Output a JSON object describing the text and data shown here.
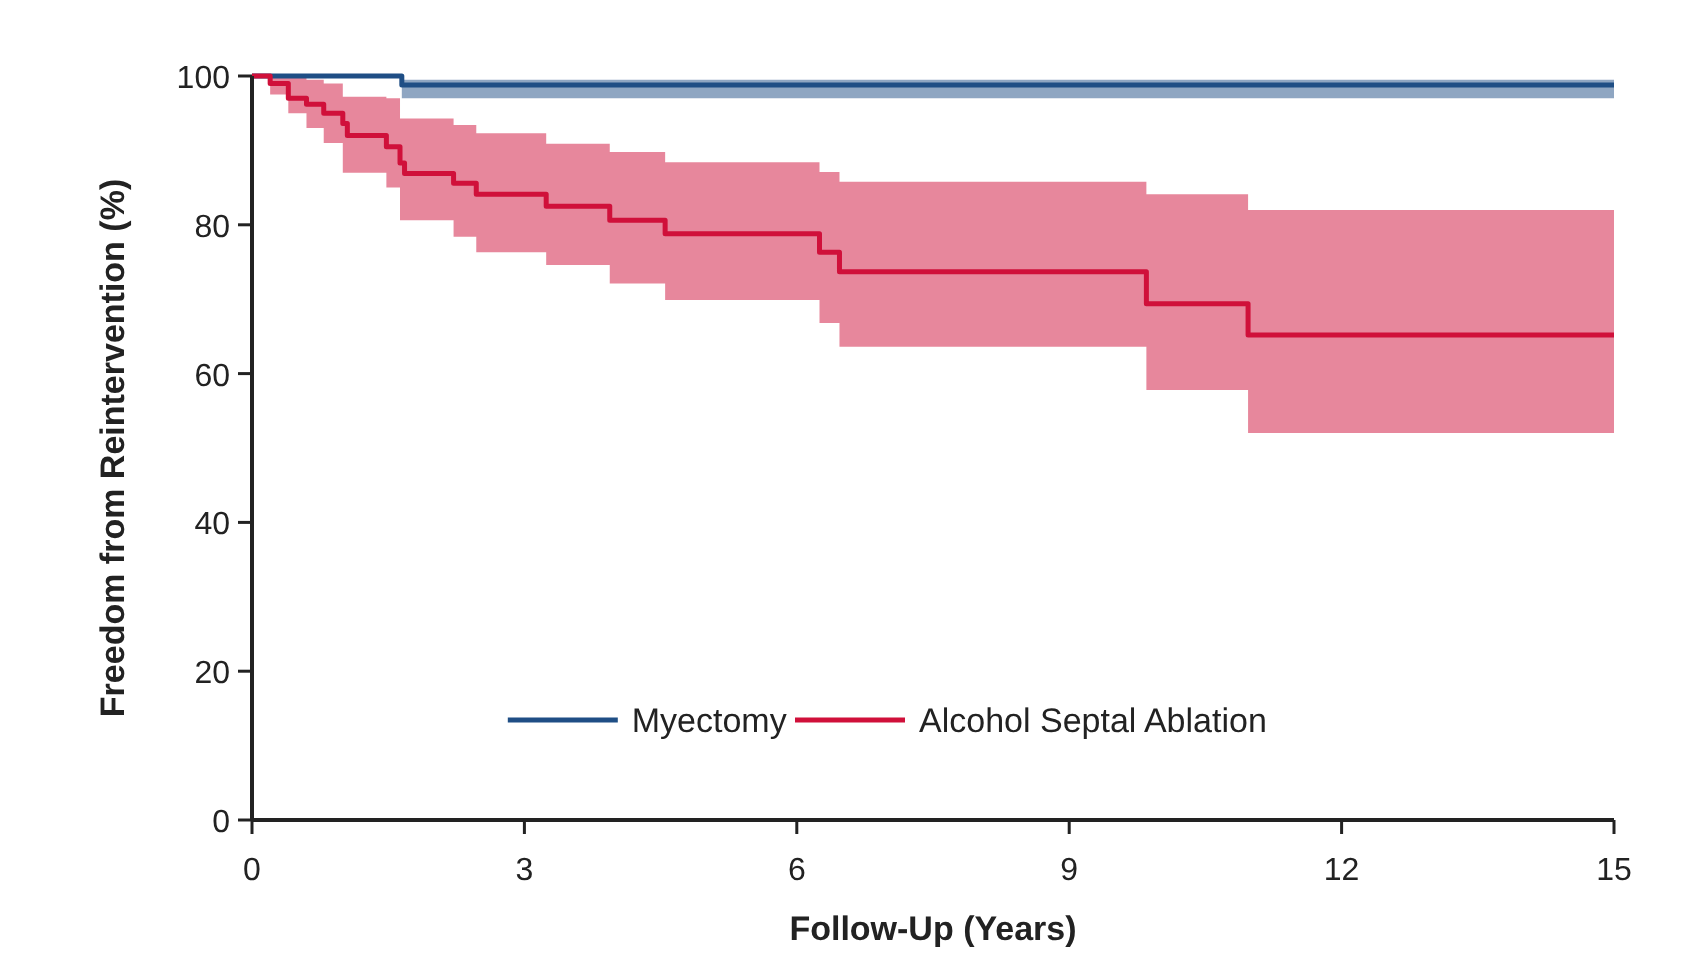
{
  "chart_data": {
    "type": "step",
    "xlabel": "Follow-Up (Years)",
    "ylabel": "Freedom from Reintervention (%)",
    "xlim": [
      0,
      15
    ],
    "xticks": [
      0,
      3,
      6,
      9,
      12,
      15
    ],
    "ylim": [
      0,
      100
    ],
    "yticks": [
      0,
      20,
      40,
      60,
      80,
      100
    ],
    "grid": false,
    "legend": "bottom",
    "marker": "none",
    "line_style": "solid",
    "series": [
      {
        "name": "Myectomy",
        "color": "#1f4e85",
        "x": [
          0,
          1.65,
          15
        ],
        "values": [
          100,
          98.8,
          98.8
        ],
        "upper": [
          100,
          99.5,
          99.5
        ],
        "lower": [
          100,
          97,
          97
        ]
      },
      {
        "name": "Alcohol Septal Ablation",
        "color": "#d0103a",
        "x": [
          0,
          0.2,
          0.4,
          0.6,
          0.79,
          1.0,
          1.05,
          1.48,
          1.63,
          1.68,
          2.22,
          2.47,
          3.24,
          3.94,
          4.55,
          6.25,
          6.47,
          9.85,
          10.97,
          15
        ],
        "values": [
          100,
          99,
          97,
          96.2,
          95,
          93.6,
          92,
          90.5,
          88.3,
          86.9,
          85.6,
          84.1,
          82.5,
          80.6,
          78.8,
          76.3,
          73.7,
          69.4,
          65.2,
          65.2
        ],
        "upper": [
          100,
          100,
          100,
          99.5,
          99,
          97.2,
          97.2,
          97,
          94.3,
          94.3,
          93.4,
          92.3,
          90.9,
          89.8,
          88.4,
          87.1,
          85.8,
          84.1,
          82,
          82
        ],
        "lower": [
          100,
          97.5,
          95,
          93,
          91,
          87,
          87,
          85,
          80.6,
          80.6,
          78.4,
          76.3,
          74.6,
          72.1,
          69.9,
          66.8,
          63.6,
          57.8,
          52,
          52
        ]
      }
    ]
  }
}
